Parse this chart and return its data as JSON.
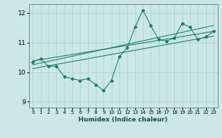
{
  "xlabel": "Humidex (Indice chaleur)",
  "ylabel": "",
  "bg_color": "#cce8e4",
  "grid_color": "#aad4cf",
  "line_color": "#1a7a6e",
  "xlim": [
    -0.5,
    23.5
  ],
  "ylim": [
    8.8,
    12.3
  ],
  "yticks": [
    9,
    10,
    11,
    12
  ],
  "xticks": [
    0,
    1,
    2,
    3,
    4,
    5,
    6,
    7,
    8,
    9,
    10,
    11,
    12,
    13,
    14,
    15,
    16,
    17,
    18,
    19,
    20,
    21,
    22,
    23
  ],
  "scatter_x": [
    0,
    1,
    2,
    3,
    4,
    5,
    6,
    7,
    8,
    9,
    10,
    11,
    12,
    13,
    14,
    15,
    16,
    17,
    18,
    19,
    20,
    21,
    22,
    23
  ],
  "scatter_y": [
    10.35,
    10.45,
    10.2,
    10.2,
    9.85,
    9.78,
    9.72,
    9.78,
    9.58,
    9.38,
    9.72,
    10.52,
    10.82,
    11.52,
    12.1,
    11.58,
    11.1,
    11.05,
    11.15,
    11.65,
    11.52,
    11.1,
    11.2,
    11.38
  ],
  "line1_x": [
    0,
    23
  ],
  "line1_y": [
    10.38,
    11.38
  ],
  "line2_x": [
    0,
    23
  ],
  "line2_y": [
    10.25,
    11.58
  ],
  "line3_x": [
    0,
    23
  ],
  "line3_y": [
    10.12,
    11.22
  ]
}
